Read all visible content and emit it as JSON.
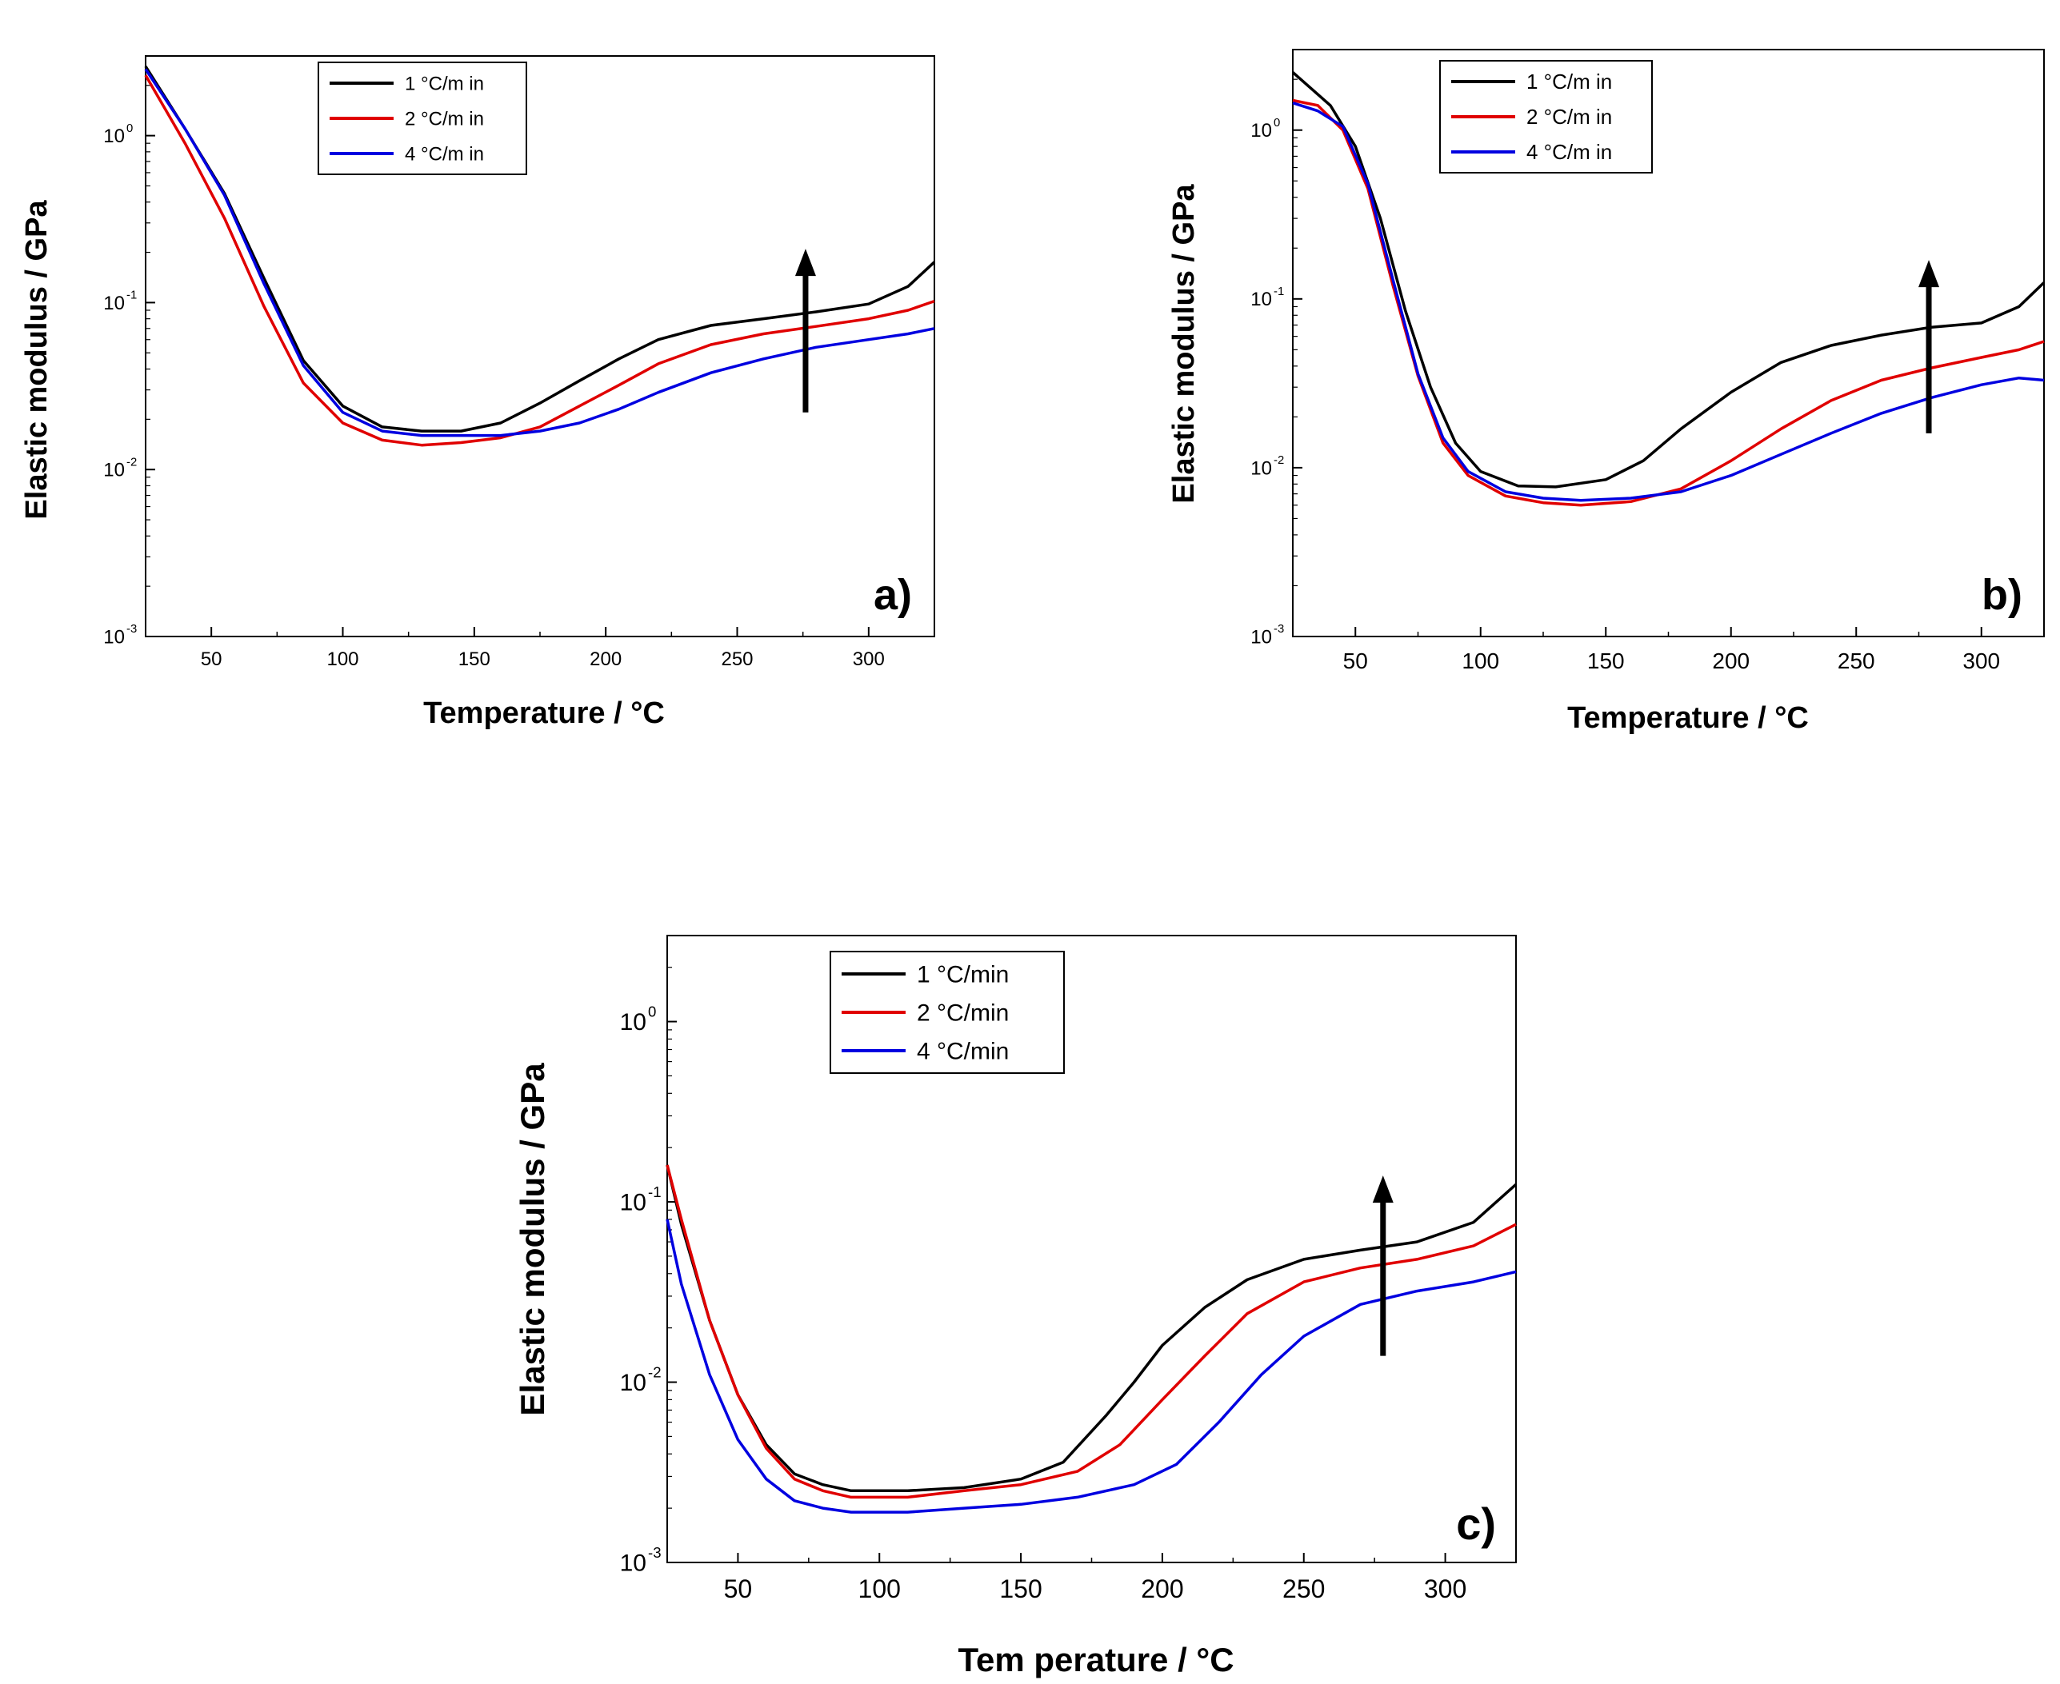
{
  "chart_data": [
    {
      "id": "a",
      "type": "line",
      "panel_label": "a)",
      "xlabel": "Temperature / °C",
      "ylabel": "Elastic modulus / GPa",
      "yscale": "log",
      "xlim": [
        25,
        325
      ],
      "ylim": [
        0.001,
        3
      ],
      "xticks": [
        "50",
        "100",
        "150",
        "200",
        "250",
        "300"
      ],
      "yticks": [
        {
          "base": "10",
          "exp": "0"
        },
        {
          "base": "10",
          "exp": "-1"
        },
        {
          "base": "10",
          "exp": "-2"
        },
        {
          "base": "10",
          "exp": "-3"
        }
      ],
      "legend_position": "top-center",
      "arrow": {
        "x": 276,
        "y_from": 0.022,
        "y_to": 0.21,
        "meaning": "increasing with decreasing heating rate"
      },
      "series": [
        {
          "name": "1 °C/m in",
          "color": "#000000",
          "x": [
            25,
            40,
            55,
            70,
            85,
            100,
            115,
            130,
            145,
            160,
            175,
            190,
            205,
            220,
            240,
            260,
            280,
            300,
            315,
            325
          ],
          "y": [
            2.6,
            1.1,
            0.45,
            0.14,
            0.045,
            0.024,
            0.018,
            0.017,
            0.017,
            0.019,
            0.025,
            0.034,
            0.046,
            0.06,
            0.073,
            0.08,
            0.088,
            0.098,
            0.125,
            0.175
          ]
        },
        {
          "name": "2 °C/m in",
          "color": "#e00000",
          "x": [
            25,
            40,
            55,
            70,
            85,
            100,
            115,
            130,
            145,
            160,
            175,
            190,
            205,
            220,
            240,
            260,
            280,
            300,
            315,
            325
          ],
          "y": [
            2.3,
            0.9,
            0.32,
            0.095,
            0.033,
            0.019,
            0.015,
            0.014,
            0.0145,
            0.0155,
            0.018,
            0.024,
            0.032,
            0.043,
            0.056,
            0.065,
            0.072,
            0.08,
            0.09,
            0.102
          ]
        },
        {
          "name": "4 °C/m in",
          "color": "#0000e0",
          "x": [
            25,
            40,
            55,
            70,
            85,
            100,
            115,
            130,
            145,
            160,
            175,
            190,
            205,
            220,
            240,
            260,
            280,
            300,
            315,
            325
          ],
          "y": [
            2.5,
            1.1,
            0.44,
            0.13,
            0.042,
            0.022,
            0.017,
            0.016,
            0.016,
            0.016,
            0.017,
            0.019,
            0.023,
            0.029,
            0.038,
            0.046,
            0.054,
            0.06,
            0.065,
            0.07
          ]
        }
      ]
    },
    {
      "id": "b",
      "type": "line",
      "panel_label": "b)",
      "xlabel": "Temperature / °C",
      "ylabel": "Elastic modulus / GPa",
      "yscale": "log",
      "xlim": [
        25,
        325
      ],
      "ylim": [
        0.001,
        3
      ],
      "xticks": [
        "50",
        "100",
        "150",
        "200",
        "250",
        "300"
      ],
      "yticks": [
        {
          "base": "10",
          "exp": "0"
        },
        {
          "base": "10",
          "exp": "-1"
        },
        {
          "base": "10",
          "exp": "-2"
        },
        {
          "base": "10",
          "exp": "-3"
        }
      ],
      "legend_position": "top-left",
      "arrow": {
        "x": 279,
        "y_from": 0.016,
        "y_to": 0.17,
        "meaning": "increasing with decreasing heating rate"
      },
      "series": [
        {
          "name": "1 °C/m in",
          "color": "#000000",
          "x": [
            25,
            40,
            50,
            60,
            70,
            80,
            90,
            100,
            115,
            130,
            150,
            165,
            180,
            200,
            220,
            240,
            260,
            280,
            300,
            315,
            325
          ],
          "y": [
            2.2,
            1.4,
            0.8,
            0.3,
            0.085,
            0.03,
            0.014,
            0.0095,
            0.0078,
            0.0077,
            0.0085,
            0.011,
            0.017,
            0.028,
            0.042,
            0.053,
            0.061,
            0.068,
            0.072,
            0.09,
            0.125
          ]
        },
        {
          "name": "2 °C/m in",
          "color": "#e00000",
          "x": [
            25,
            35,
            45,
            55,
            65,
            75,
            85,
            95,
            110,
            125,
            140,
            160,
            180,
            200,
            220,
            240,
            260,
            280,
            300,
            315,
            325
          ],
          "y": [
            1.5,
            1.4,
            1.0,
            0.45,
            0.12,
            0.035,
            0.014,
            0.009,
            0.0068,
            0.0062,
            0.006,
            0.0063,
            0.0075,
            0.011,
            0.017,
            0.025,
            0.033,
            0.039,
            0.045,
            0.05,
            0.056
          ]
        },
        {
          "name": "4 °C/m in",
          "color": "#0000e0",
          "x": [
            25,
            35,
            45,
            55,
            65,
            75,
            85,
            95,
            110,
            125,
            140,
            160,
            180,
            200,
            220,
            240,
            260,
            280,
            300,
            315,
            325
          ],
          "y": [
            1.45,
            1.3,
            1.05,
            0.48,
            0.13,
            0.036,
            0.015,
            0.0095,
            0.0072,
            0.0066,
            0.0064,
            0.0066,
            0.0072,
            0.009,
            0.012,
            0.016,
            0.021,
            0.026,
            0.031,
            0.034,
            0.033
          ]
        }
      ]
    },
    {
      "id": "c",
      "type": "line",
      "panel_label": "c)",
      "xlabel": "Tem perature / °C",
      "ylabel": "Elastic modulus / GPa",
      "yscale": "log",
      "xlim": [
        25,
        325
      ],
      "ylim": [
        0.001,
        3
      ],
      "xticks": [
        "50",
        "100",
        "150",
        "200",
        "250",
        "300"
      ],
      "yticks": [
        {
          "base": "10",
          "exp": "0"
        },
        {
          "base": "10",
          "exp": "-1"
        },
        {
          "base": "10",
          "exp": "-2"
        },
        {
          "base": "10",
          "exp": "-3"
        }
      ],
      "legend_position": "top-center",
      "arrow": {
        "x": 278,
        "y_from": 0.014,
        "y_to": 0.14,
        "meaning": "increasing with decreasing heating rate"
      },
      "series": [
        {
          "name": "1 °C/min",
          "color": "#000000",
          "x": [
            25,
            30,
            40,
            50,
            60,
            70,
            80,
            90,
            110,
            130,
            150,
            165,
            180,
            190,
            200,
            215,
            230,
            250,
            270,
            290,
            310,
            325
          ],
          "y": [
            0.16,
            0.075,
            0.022,
            0.0085,
            0.0045,
            0.0031,
            0.0027,
            0.0025,
            0.0025,
            0.0026,
            0.0029,
            0.0036,
            0.0065,
            0.01,
            0.016,
            0.026,
            0.037,
            0.048,
            0.054,
            0.06,
            0.077,
            0.125
          ]
        },
        {
          "name": "2 °C/min",
          "color": "#e00000",
          "x": [
            25,
            30,
            40,
            50,
            60,
            70,
            80,
            90,
            110,
            130,
            150,
            170,
            185,
            200,
            215,
            230,
            250,
            270,
            290,
            310,
            325
          ],
          "y": [
            0.16,
            0.08,
            0.022,
            0.0085,
            0.0043,
            0.0029,
            0.0025,
            0.0023,
            0.0023,
            0.0025,
            0.0027,
            0.0032,
            0.0045,
            0.008,
            0.014,
            0.024,
            0.036,
            0.043,
            0.048,
            0.057,
            0.075
          ]
        },
        {
          "name": "4 °C/min",
          "color": "#0000e0",
          "x": [
            25,
            30,
            40,
            50,
            60,
            70,
            80,
            90,
            110,
            130,
            150,
            170,
            190,
            205,
            220,
            235,
            250,
            270,
            290,
            310,
            325
          ],
          "y": [
            0.08,
            0.035,
            0.011,
            0.0048,
            0.0029,
            0.0022,
            0.002,
            0.0019,
            0.0019,
            0.002,
            0.0021,
            0.0023,
            0.0027,
            0.0035,
            0.006,
            0.011,
            0.018,
            0.027,
            0.032,
            0.036,
            0.041
          ]
        }
      ]
    }
  ]
}
